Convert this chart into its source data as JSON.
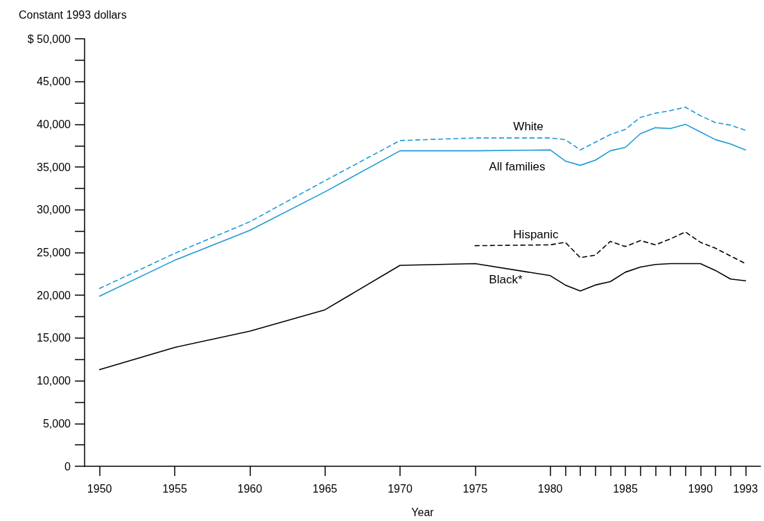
{
  "chart_data": {
    "type": "line",
    "xlabel": "Year",
    "ylabel": "Constant 1993 dollars",
    "xlim": [
      1949,
      1994
    ],
    "xticks": [
      1950,
      1955,
      1960,
      1965,
      1970,
      1975,
      1980,
      {
        "value": 1981,
        "label": null
      },
      {
        "value": 1982,
        "label": null
      },
      {
        "value": 1983,
        "label": null
      },
      {
        "value": 1984,
        "label": null
      },
      1985,
      {
        "value": 1986,
        "label": null
      },
      {
        "value": 1987,
        "label": null
      },
      {
        "value": 1988,
        "label": null
      },
      {
        "value": 1989,
        "label": null
      },
      1990,
      {
        "value": 1991,
        "label": null
      },
      {
        "value": 1992,
        "label": null
      },
      1993
    ],
    "ylim": [
      0,
      50000
    ],
    "yticks": [
      0,
      {
        "value": 2500,
        "label": null
      },
      {
        "value": 5000,
        "label": "5,000"
      },
      {
        "value": 7500,
        "label": null
      },
      {
        "value": 10000,
        "label": "10,000"
      },
      {
        "value": 12500,
        "label": null
      },
      {
        "value": 15000,
        "label": "15,000"
      },
      {
        "value": 17500,
        "label": null
      },
      {
        "value": 20000,
        "label": "20,000"
      },
      {
        "value": 22500,
        "label": null
      },
      {
        "value": 25000,
        "label": "25,000"
      },
      {
        "value": 27500,
        "label": null
      },
      {
        "value": 30000,
        "label": "30,000"
      },
      {
        "value": 32500,
        "label": null
      },
      {
        "value": 35000,
        "label": "35,000"
      },
      {
        "value": 37500,
        "label": null
      },
      {
        "value": 40000,
        "label": "40,000"
      },
      {
        "value": 42500,
        "label": null
      },
      {
        "value": 45000,
        "label": "45,000"
      },
      {
        "value": 47500,
        "label": null
      },
      {
        "value": 50000,
        "label": "$ 50,000"
      }
    ],
    "grid": false,
    "legend": false,
    "marker": "none",
    "series": [
      {
        "name": "White",
        "color": "#1a9bd7",
        "line_style": "dashed",
        "x": [
          1950,
          1955,
          1960,
          1965,
          1970,
          1975,
          1980,
          1981,
          1982,
          1983,
          1984,
          1985,
          1986,
          1987,
          1988,
          1989,
          1990,
          1991,
          1992,
          1993
        ],
        "values": [
          20800,
          24900,
          28600,
          33400,
          38100,
          38400,
          38400,
          38200,
          37000,
          37900,
          38800,
          39400,
          40800,
          41300,
          41600,
          42000,
          41000,
          40200,
          39900,
          39300
        ]
      },
      {
        "name": "All families",
        "color": "#1a9bd7",
        "line_style": "solid",
        "x": [
          1950,
          1955,
          1960,
          1965,
          1970,
          1975,
          1980,
          1981,
          1982,
          1983,
          1984,
          1985,
          1986,
          1987,
          1988,
          1989,
          1990,
          1991,
          1992,
          1993
        ],
        "values": [
          19900,
          24100,
          27600,
          32100,
          36900,
          36900,
          37000,
          35700,
          35200,
          35800,
          36900,
          37300,
          38900,
          39600,
          39500,
          40000,
          39100,
          38200,
          37700,
          37000
        ]
      },
      {
        "name": "Hispanic",
        "color": "#000000",
        "line_style": "dashed",
        "x": [
          1975,
          1980,
          1981,
          1982,
          1983,
          1984,
          1985,
          1986,
          1987,
          1988,
          1989,
          1990,
          1991,
          1992,
          1993
        ],
        "values": [
          25800,
          25900,
          26200,
          24400,
          24700,
          26300,
          25700,
          26400,
          25900,
          26600,
          27400,
          26200,
          25500,
          24600,
          23700
        ]
      },
      {
        "name": "Black*",
        "color": "#000000",
        "line_style": "solid",
        "x": [
          1950,
          1955,
          1960,
          1965,
          1970,
          1975,
          1980,
          1981,
          1982,
          1983,
          1984,
          1985,
          1986,
          1987,
          1988,
          1989,
          1990,
          1991,
          1992,
          1993
        ],
        "values": [
          11300,
          13900,
          15800,
          18300,
          23500,
          23700,
          22300,
          21200,
          20500,
          21200,
          21600,
          22700,
          23300,
          23600,
          23700,
          23700,
          23700,
          22900,
          21900,
          21700
        ]
      }
    ]
  }
}
